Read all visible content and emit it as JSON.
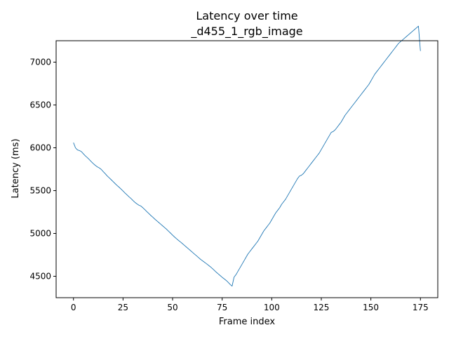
{
  "chart_data": {
    "type": "line",
    "title": "Latency over time",
    "subtitle": "_d455_1_rgb_image",
    "xlabel": "Frame index",
    "ylabel": "Latency (ms)",
    "xlim": [
      -8.75,
      183.75
    ],
    "ylim": [
      4250,
      7250
    ],
    "xticks": [
      0,
      25,
      50,
      75,
      100,
      125,
      150,
      175
    ],
    "yticks": [
      4500,
      5000,
      5500,
      6000,
      6500,
      7000
    ],
    "grid": false,
    "colors": {
      "series": "#1f77b4"
    },
    "series": [
      {
        "x": [
          0,
          1,
          2,
          3,
          4,
          5,
          6,
          7,
          8,
          9,
          10,
          11,
          12,
          13,
          14,
          15,
          16,
          17,
          18,
          19,
          20,
          21,
          22,
          23,
          24,
          25,
          26,
          27,
          28,
          29,
          30,
          31,
          32,
          33,
          34,
          35,
          36,
          37,
          38,
          39,
          40,
          41,
          42,
          43,
          44,
          45,
          46,
          47,
          48,
          49,
          50,
          51,
          52,
          53,
          54,
          55,
          56,
          57,
          58,
          59,
          60,
          61,
          62,
          63,
          64,
          65,
          66,
          67,
          68,
          69,
          70,
          71,
          72,
          73,
          74,
          75,
          76,
          77,
          78,
          79,
          80,
          81,
          82,
          83,
          84,
          85,
          86,
          87,
          88,
          89,
          90,
          91,
          92,
          93,
          94,
          95,
          96,
          97,
          98,
          99,
          100,
          101,
          102,
          103,
          104,
          105,
          106,
          107,
          108,
          109,
          110,
          111,
          112,
          113,
          114,
          115,
          116,
          117,
          118,
          119,
          120,
          121,
          122,
          123,
          124,
          125,
          126,
          127,
          128,
          129,
          130,
          131,
          132,
          133,
          134,
          135,
          136,
          137,
          138,
          139,
          140,
          141,
          142,
          143,
          144,
          145,
          146,
          147,
          148,
          149,
          150,
          151,
          152,
          153,
          154,
          155,
          156,
          157,
          158,
          159,
          160,
          161,
          162,
          163,
          164,
          165,
          166,
          167,
          168,
          169,
          170,
          171,
          172,
          173,
          174,
          175
        ],
        "y": [
          6060,
          6000,
          5975,
          5968,
          5955,
          5930,
          5905,
          5885,
          5862,
          5838,
          5815,
          5795,
          5778,
          5765,
          5748,
          5722,
          5698,
          5672,
          5650,
          5628,
          5605,
          5582,
          5560,
          5540,
          5518,
          5495,
          5472,
          5450,
          5428,
          5408,
          5385,
          5363,
          5345,
          5330,
          5320,
          5300,
          5278,
          5255,
          5233,
          5210,
          5190,
          5168,
          5148,
          5128,
          5108,
          5088,
          5068,
          5048,
          5025,
          5003,
          4980,
          4958,
          4938,
          4918,
          4900,
          4880,
          4860,
          4840,
          4820,
          4800,
          4780,
          4760,
          4740,
          4720,
          4700,
          4682,
          4665,
          4648,
          4630,
          4612,
          4592,
          4570,
          4548,
          4528,
          4508,
          4488,
          4470,
          4452,
          4430,
          4405,
          4385,
          4490,
          4520,
          4560,
          4600,
          4640,
          4680,
          4720,
          4760,
          4790,
          4820,
          4850,
          4880,
          4910,
          4950,
          4990,
          5030,
          5060,
          5090,
          5120,
          5160,
          5200,
          5240,
          5270,
          5300,
          5340,
          5370,
          5400,
          5440,
          5480,
          5520,
          5560,
          5600,
          5640,
          5670,
          5680,
          5700,
          5730,
          5760,
          5790,
          5820,
          5850,
          5880,
          5910,
          5940,
          5980,
          6020,
          6060,
          6100,
          6140,
          6180,
          6190,
          6210,
          6240,
          6270,
          6300,
          6340,
          6380,
          6410,
          6440,
          6470,
          6500,
          6530,
          6560,
          6590,
          6620,
          6650,
          6680,
          6710,
          6740,
          6780,
          6820,
          6860,
          6890,
          6920,
          6950,
          6980,
          7010,
          7040,
          7070,
          7100,
          7130,
          7160,
          7190,
          7220,
          7240,
          7260,
          7280,
          7300,
          7320,
          7340,
          7360,
          7380,
          7400,
          7420,
          7130
        ]
      }
    ]
  }
}
